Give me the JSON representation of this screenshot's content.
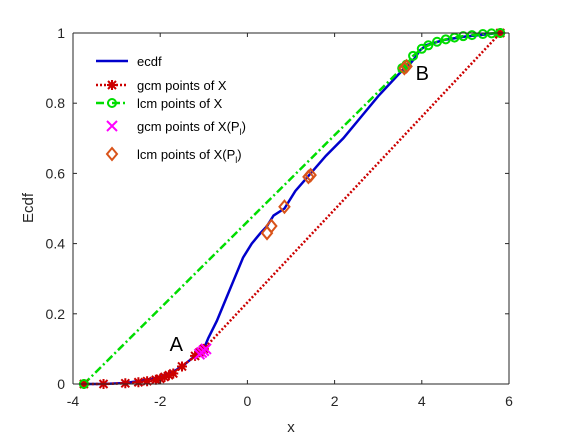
{
  "chart_data": {
    "type": "line",
    "xlabel": "x",
    "ylabel": "Ecdf",
    "xlim": [
      -4,
      6
    ],
    "ylim": [
      0,
      1
    ],
    "xticks": [
      -4,
      -2,
      0,
      2,
      4,
      6
    ],
    "yticks": [
      0,
      0.2,
      0.4,
      0.6,
      0.8,
      1
    ],
    "grid": false,
    "legend_position": "top-left",
    "series": [
      {
        "name": "ecdf",
        "style": "solid",
        "color": "#0000cc",
        "x": [
          -3.75,
          -3.3,
          -2.8,
          -2.4,
          -2.0,
          -1.7,
          -1.5,
          -1.3,
          -1.15,
          -1.0,
          -0.9,
          -0.7,
          -0.5,
          -0.3,
          -0.1,
          0.1,
          0.3,
          0.45,
          0.6,
          0.85,
          1.1,
          1.45,
          1.8,
          2.2,
          2.6,
          3.0,
          3.3,
          3.6,
          3.75,
          3.85,
          3.95,
          4.1,
          4.5,
          5.0,
          5.4,
          5.75
        ],
        "y": [
          0.0,
          0.0,
          0.003,
          0.01,
          0.02,
          0.035,
          0.05,
          0.07,
          0.085,
          0.1,
          0.13,
          0.18,
          0.24,
          0.3,
          0.36,
          0.4,
          0.43,
          0.45,
          0.48,
          0.5,
          0.55,
          0.6,
          0.65,
          0.7,
          0.76,
          0.82,
          0.86,
          0.9,
          0.915,
          0.93,
          0.95,
          0.965,
          0.98,
          0.99,
          0.995,
          1.0
        ]
      },
      {
        "name": "gcm points of X",
        "style": "dotted",
        "color": "#cc0000",
        "x": [
          -3.75,
          -3.3,
          -2.8,
          -2.5,
          -2.3,
          -2.1,
          -2.0,
          -1.9,
          -1.8,
          -1.7,
          -1.5,
          -1.2,
          -1.1,
          -1.0,
          5.8
        ],
        "y": [
          0.0,
          0.0,
          0.002,
          0.005,
          0.008,
          0.012,
          0.015,
          0.02,
          0.025,
          0.03,
          0.05,
          0.08,
          0.09,
          0.1,
          1.0
        ]
      },
      {
        "name": "lcm points of X",
        "style": "dashdot",
        "color": "#00dd00",
        "x": [
          -3.75,
          3.55,
          3.65,
          3.8,
          4.0,
          4.15,
          4.35,
          4.55,
          4.75,
          4.95,
          5.15,
          5.4,
          5.6,
          5.8
        ],
        "y": [
          0.0,
          0.9,
          0.91,
          0.935,
          0.955,
          0.965,
          0.975,
          0.982,
          0.987,
          0.991,
          0.994,
          0.997,
          0.999,
          1.0
        ]
      },
      {
        "name": "gcm points of X(P_l)",
        "style": "markers",
        "color": "#ff00ff",
        "x": [
          -1.1,
          -1.05,
          -1.0,
          -0.95
        ],
        "y": [
          0.085,
          0.09,
          0.095,
          0.1
        ]
      },
      {
        "name": "lcm points of X(P_l)",
        "style": "markers",
        "color": "#d95319",
        "x": [
          0.45,
          0.55,
          0.85,
          1.4,
          1.45,
          3.6,
          3.65
        ],
        "y": [
          0.43,
          0.45,
          0.505,
          0.59,
          0.595,
          0.9,
          0.905
        ]
      }
    ],
    "annotations": [
      {
        "text": "A",
        "x": -1.6,
        "y": 0.1
      },
      {
        "text": "B",
        "x": 3.95,
        "y": 0.9
      }
    ]
  },
  "legend": {
    "ecdf": "ecdf",
    "gcm_x": "gcm points of X",
    "lcm_x": "lcm points of X",
    "gcm_xp_prefix": "gcm points of X(P",
    "gcm_xp_sub": "l",
    "gcm_xp_suffix": ")",
    "lcm_xp_prefix": "lcm points of X(P",
    "lcm_xp_sub": "l",
    "lcm_xp_suffix": ")"
  }
}
